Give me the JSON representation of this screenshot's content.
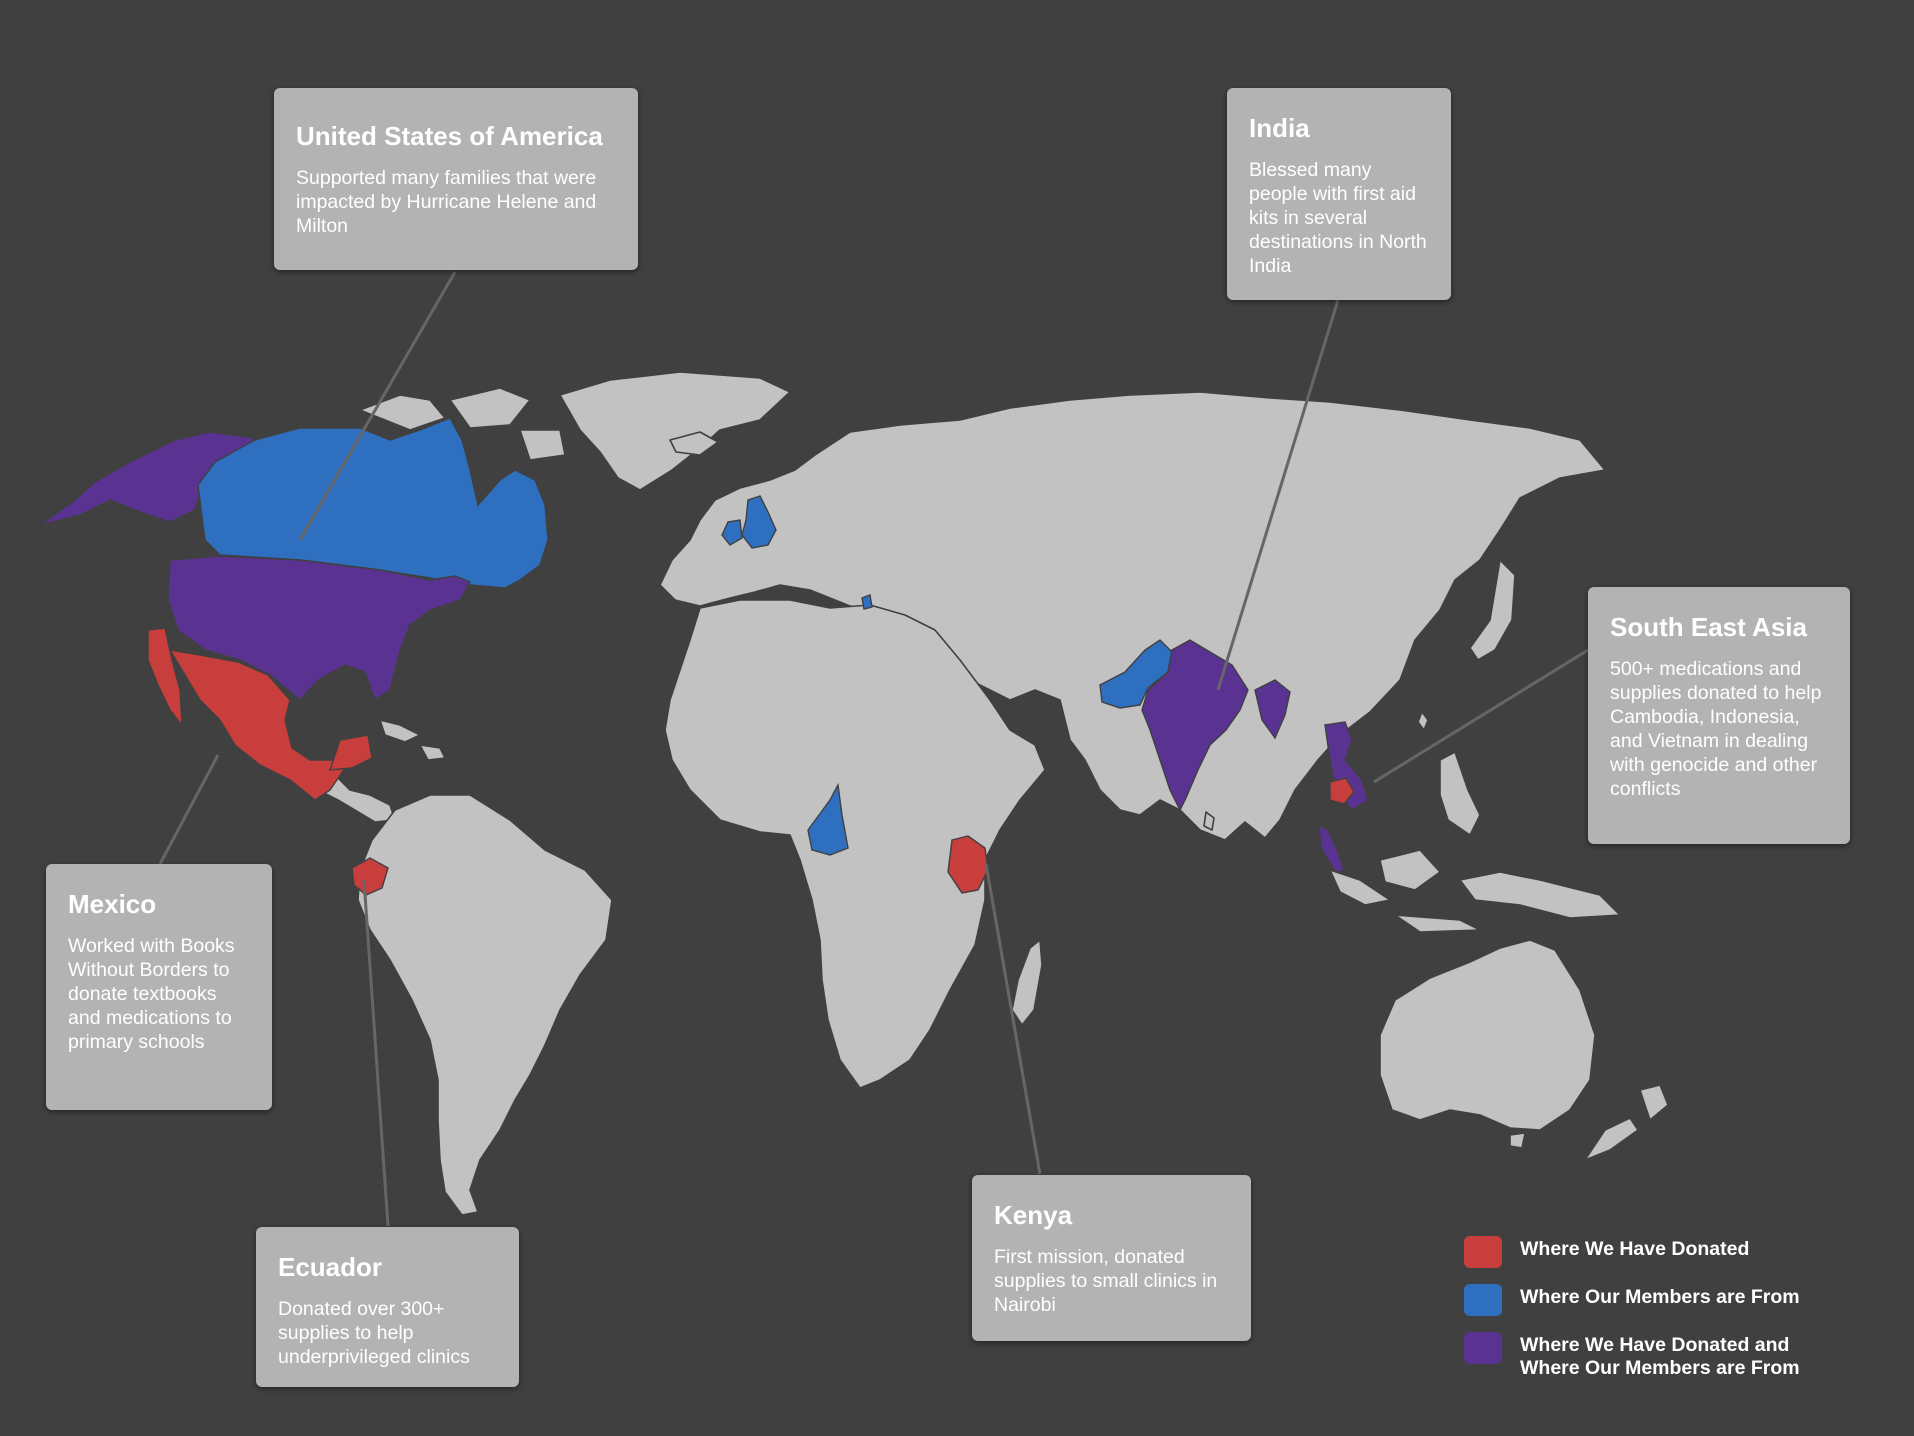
{
  "colors": {
    "background": "#404040",
    "land": "#c2c2c2",
    "donated": "#c83e3c",
    "members": "#2e6fc0",
    "both": "#5a3392",
    "callout_box": "#b3b3b3"
  },
  "highlighted_regions": {
    "donated": [
      "Mexico",
      "Cuba",
      "Ecuador",
      "Kenya",
      "Cambodia"
    ],
    "members": [
      "Canada",
      "United Kingdom",
      "Pakistan",
      "Cameroon",
      "Montenegro"
    ],
    "both": [
      "Alaska",
      "United States of America",
      "India",
      "Myanmar",
      "Vietnam",
      "Malaysia"
    ]
  },
  "callouts": [
    {
      "id": "usa",
      "title": "United States of America",
      "text": "Supported many families that were impacted by Hurricane Helene and Milton"
    },
    {
      "id": "india",
      "title": "India",
      "text": "Blessed many people with first aid kits in several destinations in North India"
    },
    {
      "id": "sea",
      "title": "South East Asia",
      "text": "500+ medications and supplies donated to help Cambodia, Indonesia, and Vietnam in dealing with genocide and other conflicts"
    },
    {
      "id": "mexico",
      "title": "Mexico",
      "text": "Worked with Books Without Borders to donate textbooks and medications to primary schools"
    },
    {
      "id": "ecuador",
      "title": "Ecuador",
      "text": "Donated over 300+ supplies to help underprivileged clinics"
    },
    {
      "id": "kenya",
      "title": "Kenya",
      "text": "First mission, donated supplies to small clinics in Nairobi"
    }
  ],
  "legend": [
    {
      "label": "Where We Have Donated",
      "color": "#c83e3c"
    },
    {
      "label": "Where Our Members are From",
      "color": "#2e6fc0"
    },
    {
      "label": "Where We Have Donated and\nWhere Our Members are From",
      "color": "#5a3392"
    }
  ]
}
